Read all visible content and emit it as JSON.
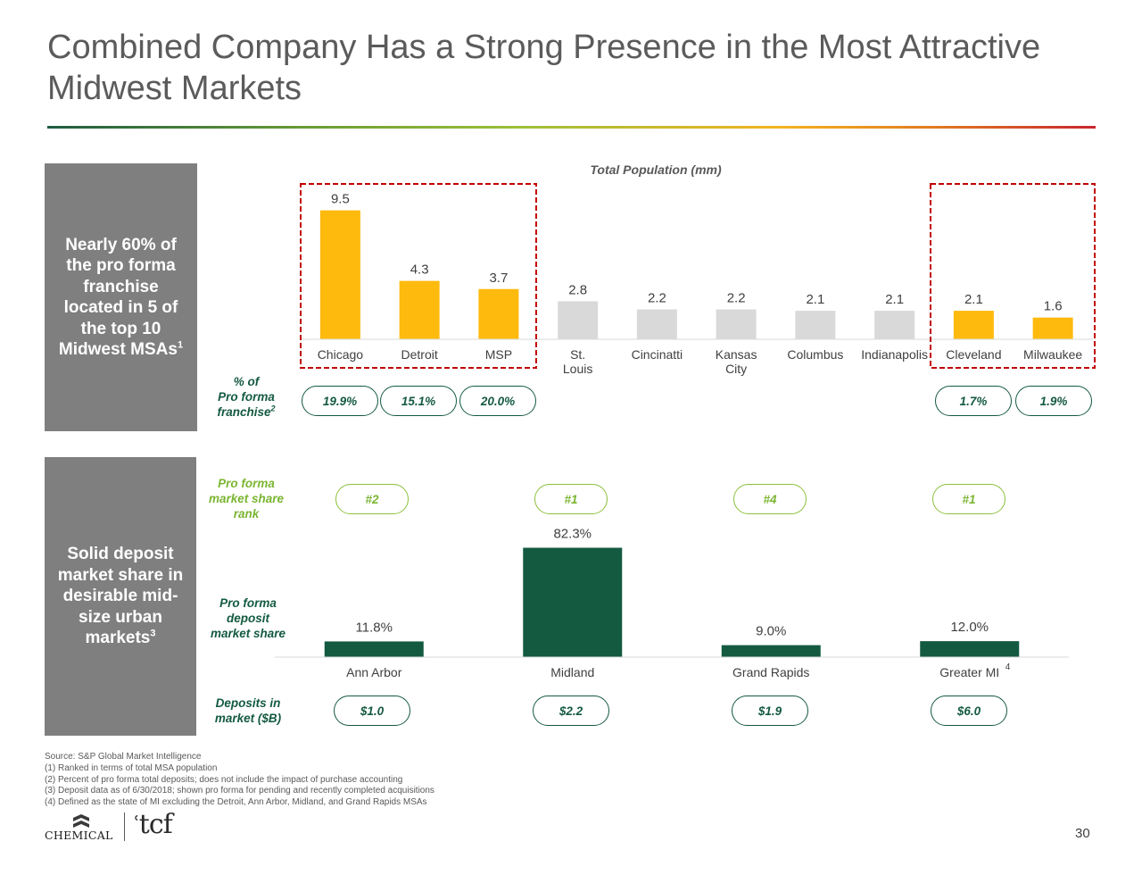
{
  "page": {
    "title": "Combined Company Has a Strong Presence in the Most Attractive Midwest Markets",
    "page_number": "30"
  },
  "side_top": {
    "lines": [
      "Nearly 60% of",
      "the pro forma",
      "franchise",
      "located in 5 of",
      "the top 10"
    ],
    "last": "Midwest MSAs",
    "sup": "1"
  },
  "side_bottom": {
    "lines": [
      "Solid deposit",
      "market share in",
      "desirable mid-",
      "size urban"
    ],
    "last": "markets",
    "sup": "3"
  },
  "row_labels": {
    "franchise": {
      "lines": [
        "% of",
        "Pro forma"
      ],
      "last": "franchise",
      "sup": "2"
    },
    "rank": {
      "lines": [
        "Pro forma",
        "market share",
        "rank"
      ]
    },
    "share": {
      "lines": [
        "Pro forma",
        "deposit",
        "market share"
      ]
    },
    "deposits": {
      "lines": [
        "Deposits in",
        "market ($B)"
      ]
    }
  },
  "pills": {
    "franchise": [
      "19.9%",
      "15.1%",
      "20.0%",
      "1.7%",
      "1.9%"
    ],
    "rank": [
      "#2",
      "#1",
      "#4",
      "#1"
    ],
    "deposits": [
      "$1.0",
      "$2.2",
      "$1.9",
      "$6.0"
    ]
  },
  "colors": {
    "highlight_bar": "#FFBA0E",
    "other_bar": "#D9D9D9",
    "share_bar": "#135A40",
    "dash_box": "#C00000",
    "panel": "#7F7F7F"
  },
  "chart_data": [
    {
      "type": "bar",
      "title": "Total Population (mm)",
      "categories": [
        "Chicago",
        "Detroit",
        "MSP",
        "St. Louis",
        "Cincinatti",
        "Kansas City",
        "Columbus",
        "Indianapolis",
        "Cleveland",
        "Milwaukee"
      ],
      "values": [
        9.5,
        4.3,
        3.7,
        2.8,
        2.2,
        2.2,
        2.1,
        2.1,
        2.1,
        1.6
      ],
      "value_labels": [
        "9.5",
        "4.3",
        "3.7",
        "2.8",
        "2.2",
        "2.2",
        "2.1",
        "2.1",
        "2.1",
        "1.6"
      ],
      "highlighted": [
        "Chicago",
        "Detroit",
        "MSP",
        "Cleveland",
        "Milwaukee"
      ],
      "ylim": [
        0,
        10
      ],
      "grid": false
    },
    {
      "type": "bar",
      "categories": [
        "Ann Arbor",
        "Midland",
        "Grand Rapids",
        "Greater MI"
      ],
      "category_sups": [
        "",
        "",
        "",
        "4"
      ],
      "values": [
        11.8,
        82.3,
        9.0,
        12.0
      ],
      "value_labels": [
        "11.8%",
        "82.3%",
        "9.0%",
        "12.0%"
      ],
      "ylim": [
        0,
        100
      ],
      "grid": false
    }
  ],
  "footnotes": [
    "Source: S&P Global Market Intelligence",
    "(1) Ranked in terms of total MSA population",
    "(2) Percent of pro forma total deposits; does not include the impact of purchase accounting",
    "(3) Deposit data as of 6/30/2018; shown pro forma for pending and recently completed acquisitions",
    "(4) Defined as the state of MI excluding the Detroit, Ann Arbor, Midland, and Grand Rapids MSAs"
  ],
  "logos": {
    "chemical": "CHEMICAL",
    "tcf": "tcf"
  }
}
